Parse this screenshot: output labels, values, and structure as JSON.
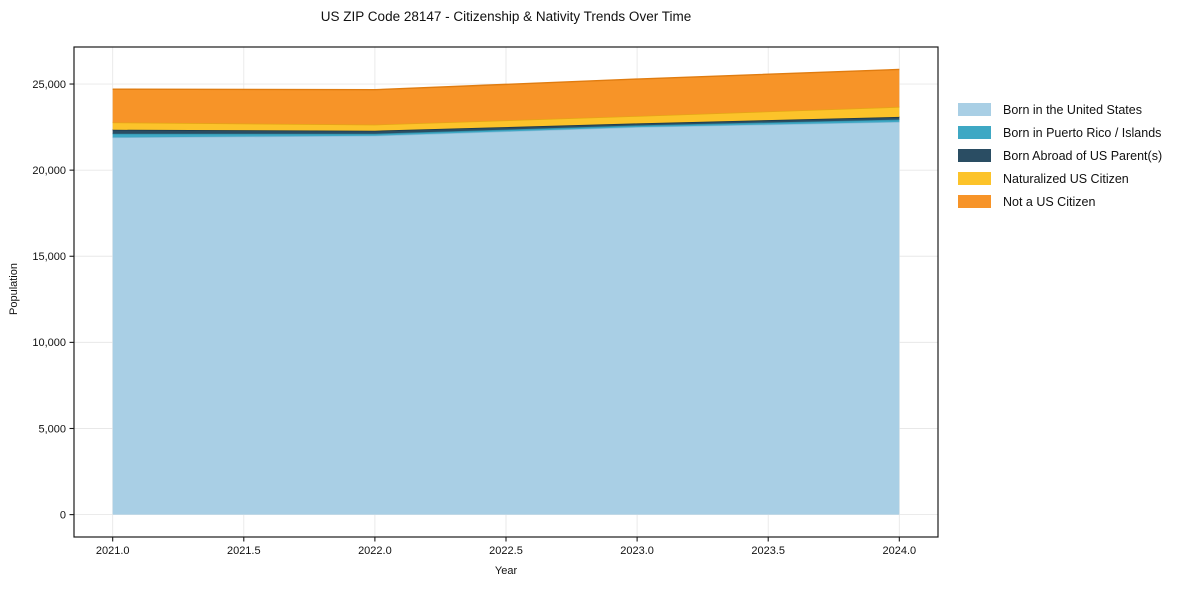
{
  "figure": {
    "background": "#ffffff"
  },
  "chart_data": {
    "type": "area",
    "stacked": true,
    "title": "US ZIP Code 28147 - Citizenship & Nativity Trends Over Time",
    "xlabel": "Year",
    "ylabel": "Population",
    "x": [
      2021,
      2022,
      2023,
      2024
    ],
    "series": [
      {
        "name": "Born in the United States",
        "color": "#a9cfe5",
        "edge_color": "#8bbcd8",
        "values": [
          21900,
          22000,
          22500,
          22800
        ]
      },
      {
        "name": "Born in Puerto Rico / Islands",
        "color": "#3ea8c4",
        "edge_color": "#2f8aa3",
        "values": [
          215,
          115,
          100,
          140
        ]
      },
      {
        "name": "Born Abroad of US Parent(s)",
        "color": "#2a4d63",
        "edge_color": "#1d3848",
        "values": [
          230,
          175,
          115,
          150
        ]
      },
      {
        "name": "Naturalized US Citizen",
        "color": "#fcc32a",
        "edge_color": "#e3a614",
        "values": [
          425,
          350,
          425,
          580
        ]
      },
      {
        "name": "Not a US Citizen",
        "color": "#f79428",
        "edge_color": "#e07c10",
        "values": [
          1930,
          2030,
          2150,
          2175
        ]
      }
    ],
    "xticks": {
      "values": [
        2021.0,
        2021.5,
        2022.0,
        2022.5,
        2023.0,
        2023.5,
        2024.0
      ],
      "labels": [
        "2021.0",
        "2021.5",
        "2022.0",
        "2022.5",
        "2023.0",
        "2023.5",
        "2024.0"
      ]
    },
    "yticks": {
      "values": [
        0,
        5000,
        10000,
        15000,
        20000,
        25000
      ],
      "labels": [
        "0",
        "5,000",
        "10,000",
        "15,000",
        "20,000",
        "25,000"
      ]
    },
    "xlim": [
      2020.8525,
      2024.1475
    ],
    "ylim": [
      -1300,
      27150
    ],
    "grid": true,
    "legend_position": "right-outside",
    "style": {
      "grid_color": "#e8e8e8",
      "spine_color": "#1a1a1a",
      "tick_color": "#1a1a1a",
      "tick_label_color": "#111111"
    }
  }
}
